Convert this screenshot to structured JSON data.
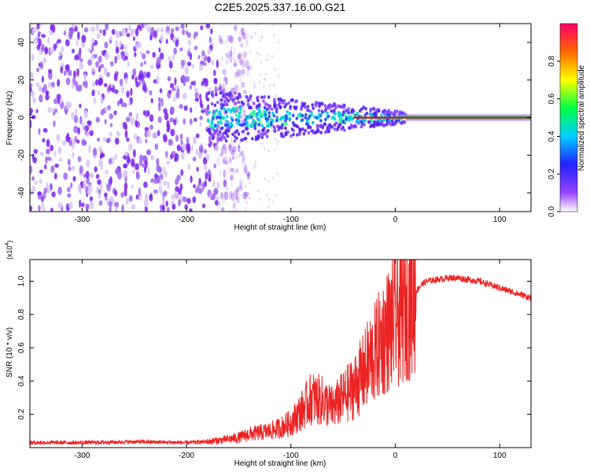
{
  "title": "C2E5.2025.337.16.00.G21",
  "colors": {
    "line": "#ee2222",
    "axis": "#000000",
    "spectrum_purple": "#7a22ee",
    "spectrum_light": "#d8c4f6",
    "spectrum_peak": "#dd1111"
  },
  "chart_data": [
    {
      "type": "heatmap",
      "name": "spectrogram",
      "xlabel": "Height of straight line (km)",
      "ylabel": "Frequency (Hz)",
      "xlim": [
        -350,
        130
      ],
      "ylim": [
        -50,
        50
      ],
      "xticks": [
        -300,
        -200,
        -100,
        0,
        100
      ],
      "yticks": [
        -40,
        -20,
        0,
        20,
        40
      ],
      "colorbar": {
        "label": "Normalized spectral amplitude",
        "range": [
          0,
          1
        ],
        "ticks": [
          0.0,
          0.2,
          0.4,
          0.6,
          0.8
        ],
        "tick_labels": [
          "0.0",
          "0.2",
          "0.4",
          "0.6",
          "0.8"
        ]
      },
      "features": {
        "peak_frequency_hz": 0,
        "noise_region_km": [
          -350,
          -150
        ],
        "signal_onset_km": -180,
        "coherent_trace_from_km": 10
      }
    },
    {
      "type": "line",
      "name": "snr",
      "xlabel": "Height of straight line (km)",
      "ylabel": "SNR (10 * v/v)",
      "yscale_label": "(x10",
      "yscale_exp": "4",
      "xlim": [
        -350,
        130
      ],
      "ylim": [
        0,
        1.13
      ],
      "xticks": [
        -300,
        -200,
        -100,
        0,
        100
      ],
      "yticks": [
        0.2,
        0.4,
        0.6,
        0.8,
        1.0
      ],
      "ytick_labels": [
        "0.2",
        "0.4",
        "0.6",
        "0.8",
        "1.0"
      ],
      "series": [
        {
          "name": "SNR",
          "x": [
            -350,
            -300,
            -250,
            -200,
            -180,
            -160,
            -150,
            -140,
            -130,
            -120,
            -110,
            -100,
            -90,
            -80,
            -70,
            -60,
            -50,
            -40,
            -30,
            -25,
            -20,
            -15,
            -10,
            -5,
            0,
            5,
            10,
            15,
            20,
            25,
            30,
            40,
            50,
            60,
            70,
            80,
            90,
            100,
            110,
            120,
            130
          ],
          "values": [
            0.03,
            0.03,
            0.035,
            0.03,
            0.035,
            0.05,
            0.06,
            0.08,
            0.09,
            0.1,
            0.12,
            0.15,
            0.22,
            0.3,
            0.28,
            0.24,
            0.3,
            0.36,
            0.45,
            0.52,
            0.56,
            0.62,
            0.68,
            0.72,
            0.76,
            0.8,
            0.86,
            0.9,
            0.94,
            0.98,
            1.0,
            1.01,
            1.02,
            1.02,
            1.01,
            1.0,
            0.98,
            0.96,
            0.94,
            0.92,
            0.9
          ]
        }
      ]
    }
  ]
}
